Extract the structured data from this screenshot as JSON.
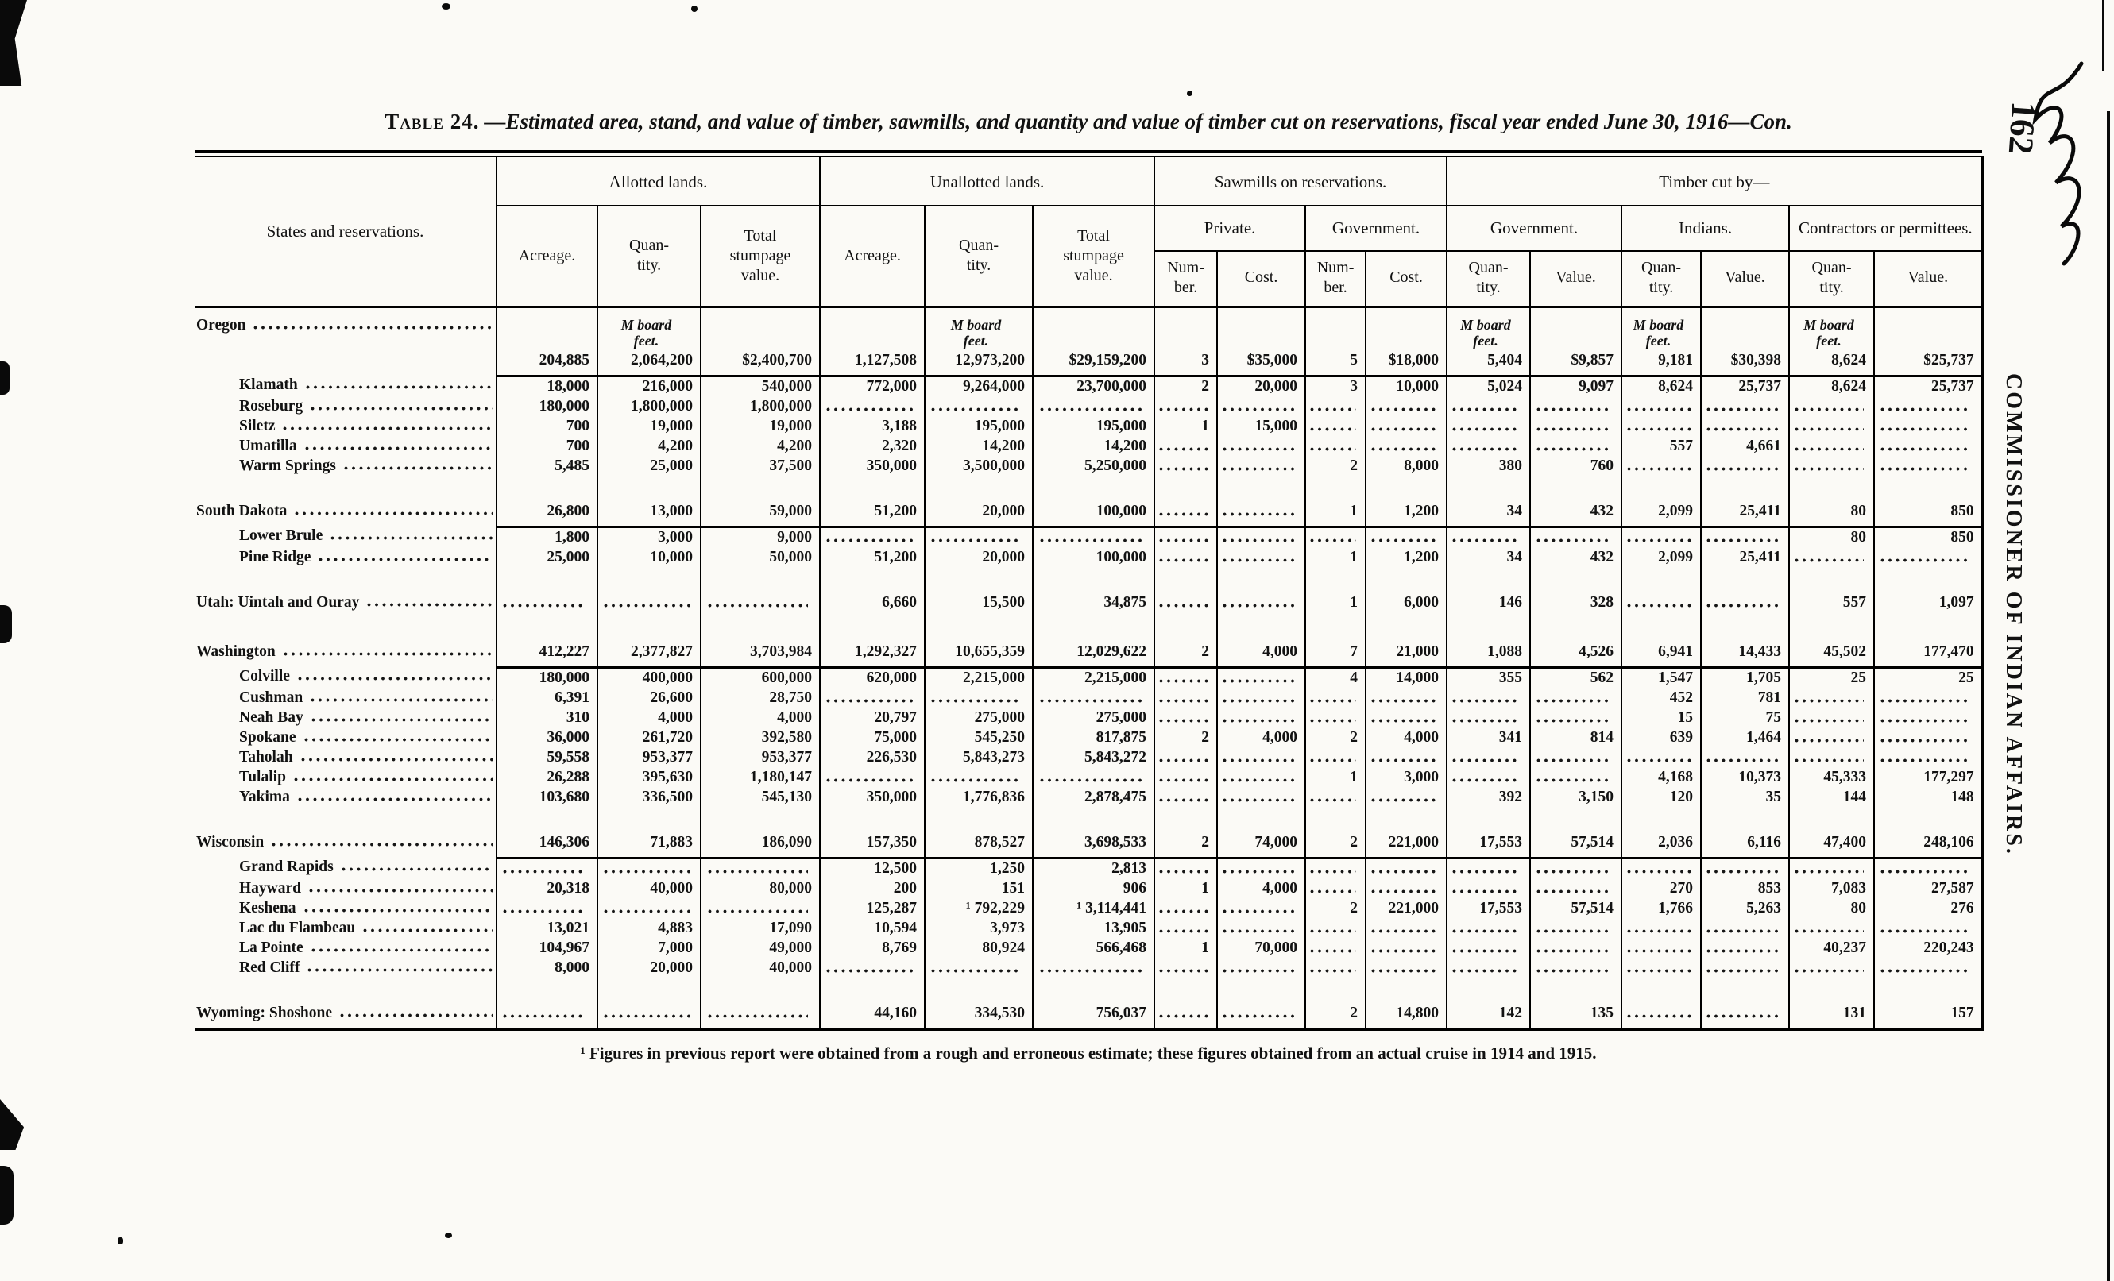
{
  "page": {
    "title_label": "Table 24.",
    "title_rest": "—Estimated area, stand, and value of timber, sawmills, and quantity and value of timber cut on reservations, fiscal year ended June 30, 1916—Con.",
    "footnote": "¹ Figures in previous report were obtained from a rough and erroneous estimate; these figures obtained from an actual cruise in 1914 and 1915.",
    "page_number": "162",
    "side_caption": "COMMISSIONER OF INDIAN AFFAIRS."
  },
  "table": {
    "header": {
      "stub": "States and reservations.",
      "allotted": "Allotted lands.",
      "unallotted": "Unallotted lands.",
      "sawmills": "Sawmills on reservations.",
      "timber_cut": "Timber cut by—",
      "private": "Private.",
      "government": "Government.",
      "indians": "Indians.",
      "contractors": "Contractors or\npermittees.",
      "acreage": "Acreage.",
      "quantity": "Quan-\ntity.",
      "stumpage": "Total\nstumpage\nvalue.",
      "number": "Num-\nber.",
      "cost": "Cost.",
      "value": "Value.",
      "units": "M board\nfeet."
    },
    "units_cols": [
      1,
      4,
      10,
      12,
      14
    ],
    "rows": [
      {
        "label": "Oregon",
        "type": "state",
        "units": true,
        "rule_below": true,
        "cells": [
          "204,885",
          "2,064,200",
          "$2,400,700",
          "1,127,508",
          "12,973,200",
          "$29,159,200",
          "3",
          "$35,000",
          "5",
          "$18,000",
          "5,404",
          "$9,857",
          "9,181",
          "$30,398",
          "8,624",
          "$25,737"
        ]
      },
      {
        "label": "Klamath",
        "type": "sub",
        "cells": [
          "18,000",
          "216,000",
          "540,000",
          "772,000",
          "9,264,000",
          "23,700,000",
          "2",
          "20,000",
          "3",
          "10,000",
          "5,024",
          "9,097",
          "8,624",
          "25,737",
          "8,624",
          "25,737"
        ]
      },
      {
        "label": "Roseburg",
        "type": "sub",
        "cells": [
          "180,000",
          "1,800,000",
          "1,800,000",
          "",
          "",
          "",
          "",
          "",
          "",
          "",
          "",
          "",
          "",
          "",
          "",
          ""
        ]
      },
      {
        "label": "Siletz",
        "type": "sub",
        "cells": [
          "700",
          "19,000",
          "19,000",
          "3,188",
          "195,000",
          "195,000",
          "1",
          "15,000",
          "",
          "",
          "",
          "",
          "",
          "",
          "",
          ""
        ]
      },
      {
        "label": "Umatilla",
        "type": "sub",
        "cells": [
          "700",
          "4,200",
          "4,200",
          "2,320",
          "14,200",
          "14,200",
          "",
          "",
          "",
          "",
          "",
          "",
          "557",
          "4,661",
          "",
          ""
        ]
      },
      {
        "label": "Warm Springs",
        "type": "sub",
        "cells": [
          "5,485",
          "25,000",
          "37,500",
          "350,000",
          "3,500,000",
          "5,250,000",
          "",
          "",
          "2",
          "8,000",
          "380",
          "760",
          "",
          "",
          "",
          ""
        ]
      },
      {
        "type": "gap"
      },
      {
        "label": "South Dakota",
        "type": "state",
        "rule_below": true,
        "cells": [
          "26,800",
          "13,000",
          "59,000",
          "51,200",
          "20,000",
          "100,000",
          "",
          "",
          "1",
          "1,200",
          "34",
          "432",
          "2,099",
          "25,411",
          "80",
          "850"
        ]
      },
      {
        "label": "Lower Brule",
        "type": "sub",
        "cells": [
          "1,800",
          "3,000",
          "9,000",
          "",
          "",
          "",
          "",
          "",
          "",
          "",
          "",
          "",
          "",
          "",
          "80",
          "850"
        ]
      },
      {
        "label": "Pine Ridge",
        "type": "sub",
        "cells": [
          "25,000",
          "10,000",
          "50,000",
          "51,200",
          "20,000",
          "100,000",
          "",
          "",
          "1",
          "1,200",
          "34",
          "432",
          "2,099",
          "25,411",
          "",
          ""
        ]
      },
      {
        "type": "gap"
      },
      {
        "label": "Utah: Uintah and Ouray",
        "type": "state",
        "cells": [
          "",
          "",
          "",
          "6,660",
          "15,500",
          "34,875",
          "",
          "",
          "1",
          "6,000",
          "146",
          "328",
          "",
          "",
          "557",
          "1,097"
        ]
      },
      {
        "type": "gap"
      },
      {
        "label": "Washington",
        "type": "state",
        "rule_below": true,
        "cells": [
          "412,227",
          "2,377,827",
          "3,703,984",
          "1,292,327",
          "10,655,359",
          "12,029,622",
          "2",
          "4,000",
          "7",
          "21,000",
          "1,088",
          "4,526",
          "6,941",
          "14,433",
          "45,502",
          "177,470"
        ]
      },
      {
        "label": "Colville",
        "type": "sub",
        "cells": [
          "180,000",
          "400,000",
          "600,000",
          "620,000",
          "2,215,000",
          "2,215,000",
          "",
          "",
          "4",
          "14,000",
          "355",
          "562",
          "1,547",
          "1,705",
          "25",
          "25"
        ]
      },
      {
        "label": "Cushman",
        "type": "sub",
        "cells": [
          "6,391",
          "26,600",
          "28,750",
          "",
          "",
          "",
          "",
          "",
          "",
          "",
          "",
          "",
          "452",
          "781",
          "",
          ""
        ]
      },
      {
        "label": "Neah Bay",
        "type": "sub",
        "cells": [
          "310",
          "4,000",
          "4,000",
          "20,797",
          "275,000",
          "275,000",
          "",
          "",
          "",
          "",
          "",
          "",
          "15",
          "75",
          "",
          ""
        ]
      },
      {
        "label": "Spokane",
        "type": "sub",
        "cells": [
          "36,000",
          "261,720",
          "392,580",
          "75,000",
          "545,250",
          "817,875",
          "2",
          "4,000",
          "2",
          "4,000",
          "341",
          "814",
          "639",
          "1,464",
          "",
          ""
        ]
      },
      {
        "label": "Taholah",
        "type": "sub",
        "cells": [
          "59,558",
          "953,377",
          "953,377",
          "226,530",
          "5,843,273",
          "5,843,272",
          "",
          "",
          "",
          "",
          "",
          "",
          "",
          "",
          "",
          ""
        ]
      },
      {
        "label": "Tulalip",
        "type": "sub",
        "cells": [
          "26,288",
          "395,630",
          "1,180,147",
          "",
          "",
          "",
          "",
          "",
          "1",
          "3,000",
          "",
          "",
          "4,168",
          "10,373",
          "45,333",
          "177,297"
        ]
      },
      {
        "label": "Yakima",
        "type": "sub",
        "cells": [
          "103,680",
          "336,500",
          "545,130",
          "350,000",
          "1,776,836",
          "2,878,475",
          "",
          "",
          "",
          "",
          "392",
          "3,150",
          "120",
          "35",
          "144",
          "148"
        ]
      },
      {
        "type": "gap"
      },
      {
        "label": "Wisconsin",
        "type": "state",
        "rule_below": true,
        "cells": [
          "146,306",
          "71,883",
          "186,090",
          "157,350",
          "878,527",
          "3,698,533",
          "2",
          "74,000",
          "2",
          "221,000",
          "17,553",
          "57,514",
          "2,036",
          "6,116",
          "47,400",
          "248,106"
        ]
      },
      {
        "label": "Grand Rapids",
        "type": "sub",
        "cells": [
          "",
          "",
          "",
          "12,500",
          "1,250",
          "2,813",
          "",
          "",
          "",
          "",
          "",
          "",
          "",
          "",
          "",
          ""
        ]
      },
      {
        "label": "Hayward",
        "type": "sub",
        "cells": [
          "20,318",
          "40,000",
          "80,000",
          "200",
          "151",
          "906",
          "1",
          "4,000",
          "",
          "",
          "",
          "",
          "270",
          "853",
          "7,083",
          "27,587"
        ]
      },
      {
        "label": "Keshena",
        "type": "sub",
        "cells": [
          "",
          "",
          "",
          "125,287",
          "¹ 792,229",
          "¹ 3,114,441",
          "",
          "",
          "2",
          "221,000",
          "17,553",
          "57,514",
          "1,766",
          "5,263",
          "80",
          "276"
        ]
      },
      {
        "label": "Lac du Flambeau",
        "type": "sub",
        "cells": [
          "13,021",
          "4,883",
          "17,090",
          "10,594",
          "3,973",
          "13,905",
          "",
          "",
          "",
          "",
          "",
          "",
          "",
          "",
          "",
          ""
        ]
      },
      {
        "label": "La Pointe",
        "type": "sub",
        "cells": [
          "104,967",
          "7,000",
          "49,000",
          "8,769",
          "80,924",
          "566,468",
          "1",
          "70,000",
          "",
          "",
          "",
          "",
          "",
          "",
          "40,237",
          "220,243"
        ]
      },
      {
        "label": "Red Cliff",
        "type": "sub",
        "cells": [
          "8,000",
          "20,000",
          "40,000",
          "",
          "",
          "",
          "",
          "",
          "",
          "",
          "",
          "",
          "",
          "",
          "",
          ""
        ]
      },
      {
        "type": "gap"
      },
      {
        "label": "Wyoming: Shoshone",
        "type": "state",
        "cells": [
          "",
          "",
          "",
          "44,160",
          "334,530",
          "756,037",
          "",
          "",
          "2",
          "14,800",
          "142",
          "135",
          "",
          "",
          "131",
          "157"
        ]
      }
    ]
  }
}
